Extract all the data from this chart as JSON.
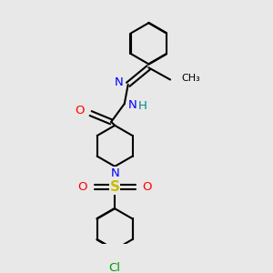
{
  "bg_color": "#e8e8e8",
  "bond_color": "#000000",
  "bond_width": 1.5,
  "fig_size": [
    3.0,
    3.0
  ],
  "dpi": 100,
  "xlim": [
    0,
    10
  ],
  "ylim": [
    0,
    10
  ]
}
